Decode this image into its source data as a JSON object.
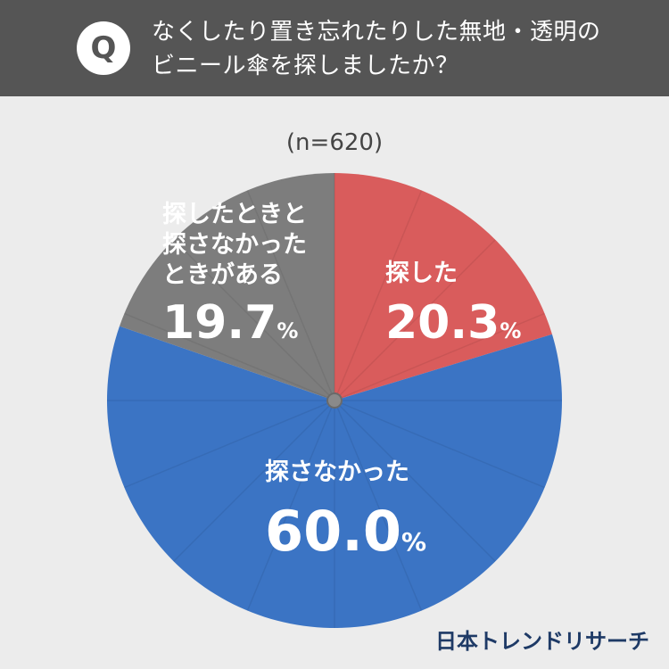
{
  "question": {
    "badge": "Q",
    "line1": "なくしたり置き忘れたりした無地・透明の",
    "line2": "ビニール傘を探しましたか？"
  },
  "sample_size": "(n=620)",
  "chart_data": {
    "type": "pie",
    "title": "",
    "slices": [
      {
        "label": "探した",
        "value": 20.3,
        "color": "#d95c5c"
      },
      {
        "label": "探さなかった",
        "value": 60.0,
        "color": "#3b74c4"
      },
      {
        "label_lines": [
          "探したときと",
          "探さなかった",
          "ときがある"
        ],
        "value": 19.7,
        "color": "#7d7d7d"
      }
    ],
    "unit": "%"
  },
  "labels": {
    "searched": {
      "text": "探した",
      "num": "20.3",
      "pct": "%"
    },
    "not_searched": {
      "text": "探さなかった",
      "num": "60.0",
      "pct": "%"
    },
    "both": {
      "line1": "探したときと",
      "line2": "探さなかった",
      "line3": "ときがある",
      "num": "19.7",
      "pct": "%"
    }
  },
  "logo": "日本トレンドリサーチ"
}
